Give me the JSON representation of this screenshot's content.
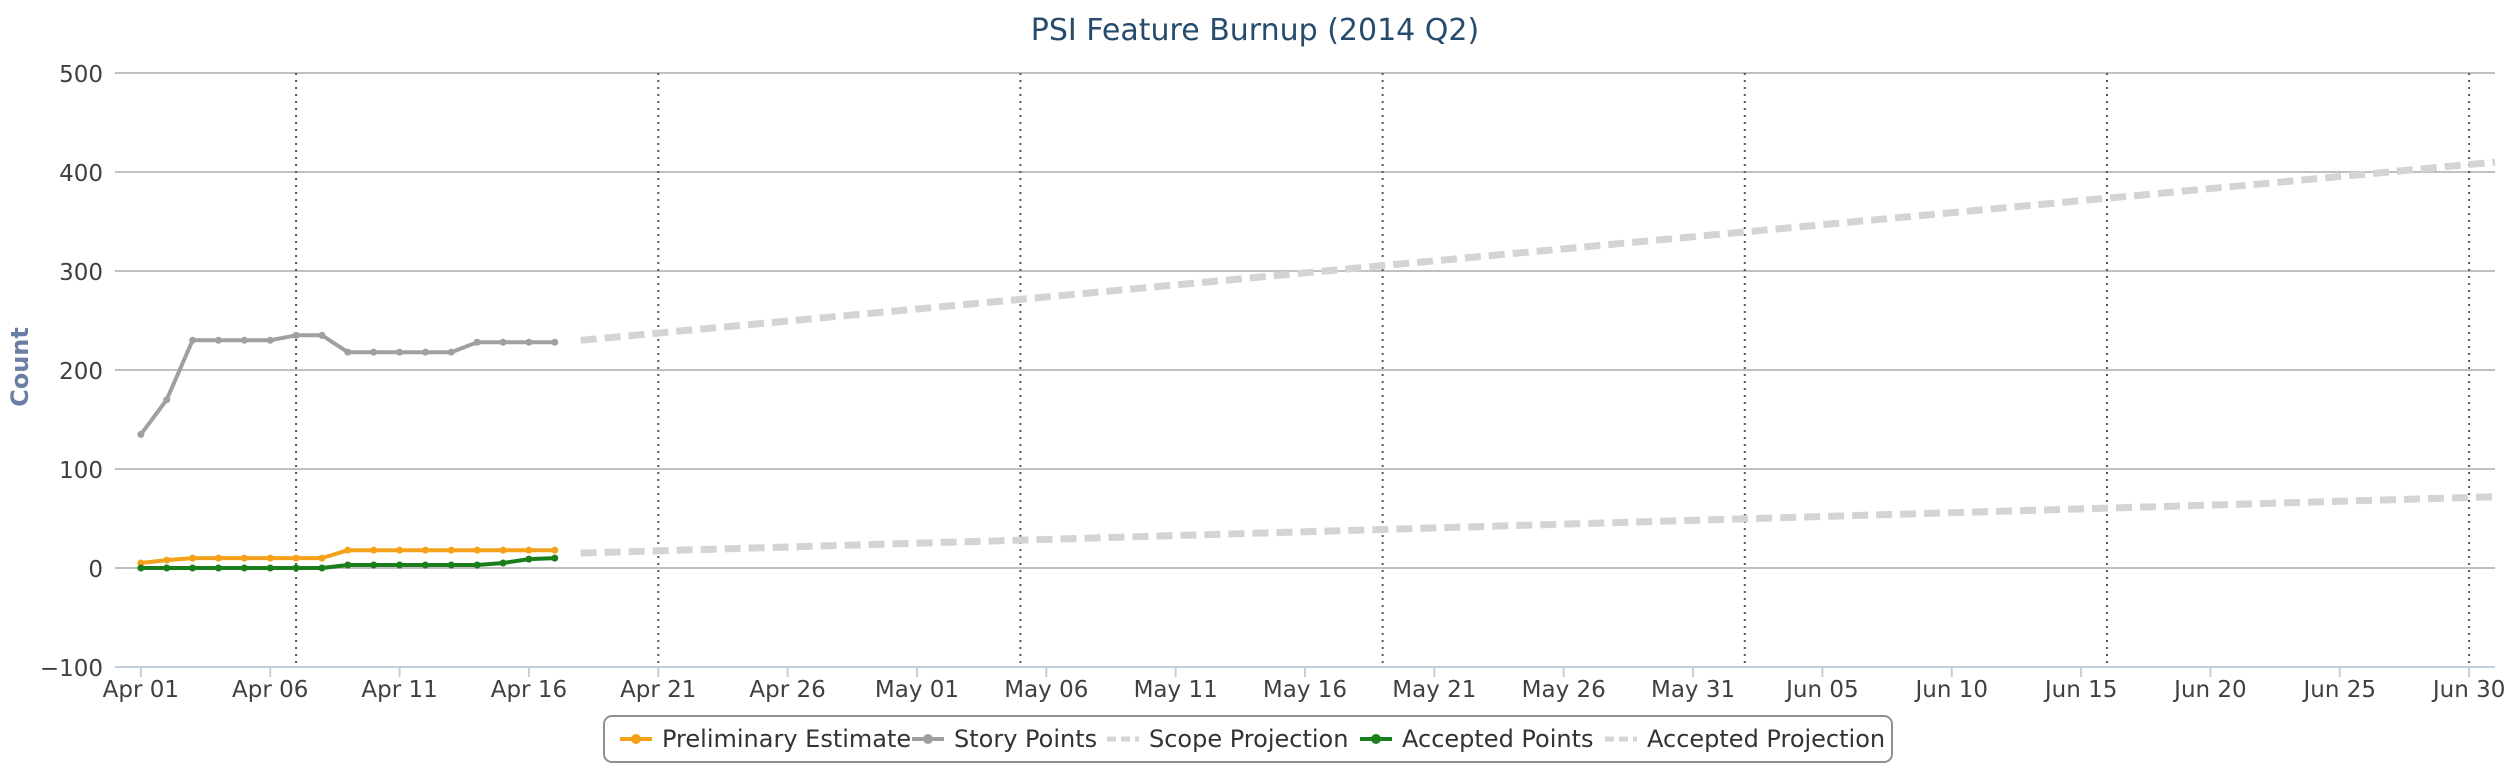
{
  "chart_data": {
    "type": "line",
    "title": "PSI Feature Burnup (2014 Q2)",
    "xlabel": "",
    "ylabel": "Count",
    "x_range": [
      "2014-03-31",
      "2014-07-01"
    ],
    "ylim": [
      -100,
      500
    ],
    "y_ticks": [
      -100,
      0,
      100,
      200,
      300,
      400,
      500
    ],
    "x_tick_labels": [
      "Apr 01",
      "Apr 06",
      "Apr 11",
      "Apr 16",
      "Apr 21",
      "Apr 26",
      "May 01",
      "May 06",
      "May 11",
      "May 16",
      "May 21",
      "May 26",
      "May 31",
      "Jun 05",
      "Jun 10",
      "Jun 15",
      "Jun 20",
      "Jun 25",
      "Jun 30"
    ],
    "x_tick_dates": [
      "2014-04-01",
      "2014-04-06",
      "2014-04-11",
      "2014-04-16",
      "2014-04-21",
      "2014-04-26",
      "2014-05-01",
      "2014-05-06",
      "2014-05-11",
      "2014-05-16",
      "2014-05-21",
      "2014-05-26",
      "2014-05-31",
      "2014-06-05",
      "2014-06-10",
      "2014-06-15",
      "2014-06-20",
      "2014-06-25",
      "2014-06-30"
    ],
    "plot_lines": [
      "2014-04-07",
      "2014-04-21",
      "2014-05-05",
      "2014-05-19",
      "2014-06-02",
      "2014-06-16",
      "2014-06-30"
    ],
    "grid": true,
    "legend_position": "bottom-center",
    "series": [
      {
        "name": "Preliminary Estimate",
        "color": "#f5a21a",
        "style": "solid",
        "marker": true,
        "x": [
          "2014-04-01",
          "2014-04-02",
          "2014-04-03",
          "2014-04-04",
          "2014-04-05",
          "2014-04-06",
          "2014-04-07",
          "2014-04-08",
          "2014-04-09",
          "2014-04-10",
          "2014-04-11",
          "2014-04-12",
          "2014-04-13",
          "2014-04-14",
          "2014-04-15",
          "2014-04-16",
          "2014-04-17"
        ],
        "y": [
          5,
          8,
          10,
          10,
          10,
          10,
          10,
          10,
          18,
          18,
          18,
          18,
          18,
          18,
          18,
          18,
          18
        ]
      },
      {
        "name": "Story Points",
        "color": "#a0a0a0",
        "style": "solid",
        "marker": true,
        "x": [
          "2014-04-01",
          "2014-04-02",
          "2014-04-03",
          "2014-04-04",
          "2014-04-05",
          "2014-04-06",
          "2014-04-07",
          "2014-04-08",
          "2014-04-09",
          "2014-04-10",
          "2014-04-11",
          "2014-04-12",
          "2014-04-13",
          "2014-04-14",
          "2014-04-15",
          "2014-04-16",
          "2014-04-17"
        ],
        "y": [
          135,
          170,
          230,
          230,
          230,
          230,
          235,
          235,
          218,
          218,
          218,
          218,
          218,
          228,
          228,
          228,
          228
        ]
      },
      {
        "name": "Scope Projection",
        "color": "#d4d4d4",
        "style": "dashed",
        "marker": false,
        "x": [
          "2014-04-18",
          "2014-07-01"
        ],
        "y": [
          230,
          410
        ]
      },
      {
        "name": "Accepted Points",
        "color": "#1a7f1a",
        "style": "solid",
        "marker": true,
        "x": [
          "2014-04-01",
          "2014-04-02",
          "2014-04-03",
          "2014-04-04",
          "2014-04-05",
          "2014-04-06",
          "2014-04-07",
          "2014-04-08",
          "2014-04-09",
          "2014-04-10",
          "2014-04-11",
          "2014-04-12",
          "2014-04-13",
          "2014-04-14",
          "2014-04-15",
          "2014-04-16",
          "2014-04-17"
        ],
        "y": [
          0,
          0,
          0,
          0,
          0,
          0,
          0,
          0,
          3,
          3,
          3,
          3,
          3,
          3,
          5,
          9,
          10
        ]
      },
      {
        "name": "Accepted Projection",
        "color": "#d4d4d4",
        "style": "dashed",
        "marker": false,
        "x": [
          "2014-04-18",
          "2014-07-01"
        ],
        "y": [
          15,
          72
        ]
      }
    ]
  }
}
